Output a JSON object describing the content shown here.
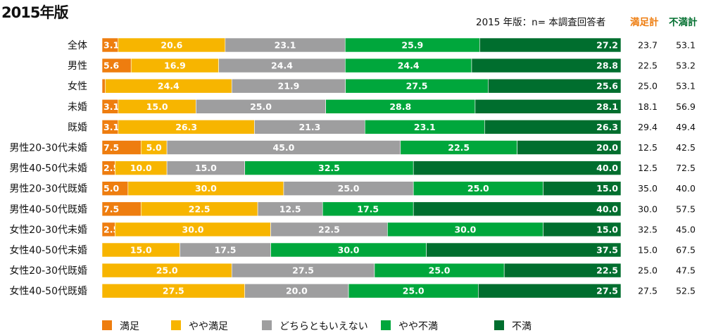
{
  "chart_data": {
    "type": "bar",
    "orientation": "horizontal-stacked-100",
    "title": "2015年版",
    "note": "2015 年版：n= 本調査回答者",
    "legend_position": "bottom",
    "series_names": [
      "満足",
      "やや満足",
      "どちらともいえない",
      "やや不満",
      "不満"
    ],
    "colors": [
      "#EE7D0F",
      "#F7B500",
      "#9E9E9F",
      "#00A73C",
      "#006E2E"
    ],
    "totals_headers": {
      "satisfied": "満足計",
      "dissatisfied": "不満計"
    },
    "totals_colors": {
      "satisfied": "#EE7D0F",
      "dissatisfied": "#006E2E"
    },
    "rows": [
      {
        "label": "全体",
        "values": [
          3.1,
          20.6,
          23.1,
          25.9,
          27.2
        ],
        "satisfied_total": "23.7",
        "dissatisfied_total": "53.1"
      },
      {
        "label": "男性",
        "values": [
          5.6,
          16.9,
          24.4,
          24.4,
          28.8
        ],
        "satisfied_total": "22.5",
        "dissatisfied_total": "53.2"
      },
      {
        "label": "女性",
        "values": [
          0.6,
          24.4,
          21.9,
          27.5,
          25.6
        ],
        "hide_first_label": true,
        "satisfied_total": "25.0",
        "dissatisfied_total": "53.1"
      },
      {
        "label": "未婚",
        "values": [
          3.1,
          15.0,
          25.0,
          28.8,
          28.1
        ],
        "satisfied_total": "18.1",
        "dissatisfied_total": "56.9"
      },
      {
        "label": "既婚",
        "values": [
          3.1,
          26.3,
          21.3,
          23.1,
          26.3
        ],
        "satisfied_total": "29.4",
        "dissatisfied_total": "49.4"
      },
      {
        "label": "男性20-30代未婚",
        "values": [
          7.5,
          5.0,
          45.0,
          22.5,
          20.0
        ],
        "satisfied_total": "12.5",
        "dissatisfied_total": "42.5"
      },
      {
        "label": "男性40-50代未婚",
        "values": [
          2.5,
          10.0,
          15.0,
          32.5,
          40.0
        ],
        "satisfied_total": "12.5",
        "dissatisfied_total": "72.5"
      },
      {
        "label": "男性20-30代既婚",
        "values": [
          5.0,
          30.0,
          25.0,
          25.0,
          15.0
        ],
        "satisfied_total": "35.0",
        "dissatisfied_total": "40.0"
      },
      {
        "label": "男性40-50代既婚",
        "values": [
          7.5,
          22.5,
          12.5,
          17.5,
          40.0
        ],
        "satisfied_total": "30.0",
        "dissatisfied_total": "57.5"
      },
      {
        "label": "女性20-30代未婚",
        "values": [
          2.5,
          30.0,
          22.5,
          30.0,
          15.0
        ],
        "satisfied_total": "32.5",
        "dissatisfied_total": "45.0"
      },
      {
        "label": "女性40-50代未婚",
        "values": [
          0,
          15.0,
          17.5,
          30.0,
          37.5
        ],
        "satisfied_total": "15.0",
        "dissatisfied_total": "67.5"
      },
      {
        "label": "女性20-30代既婚",
        "values": [
          0,
          25.0,
          27.5,
          25.0,
          22.5
        ],
        "satisfied_total": "25.0",
        "dissatisfied_total": "47.5"
      },
      {
        "label": "女性40-50代既婚",
        "values": [
          0,
          27.5,
          20.0,
          25.0,
          27.5
        ],
        "satisfied_total": "27.5",
        "dissatisfied_total": "52.5"
      }
    ]
  }
}
